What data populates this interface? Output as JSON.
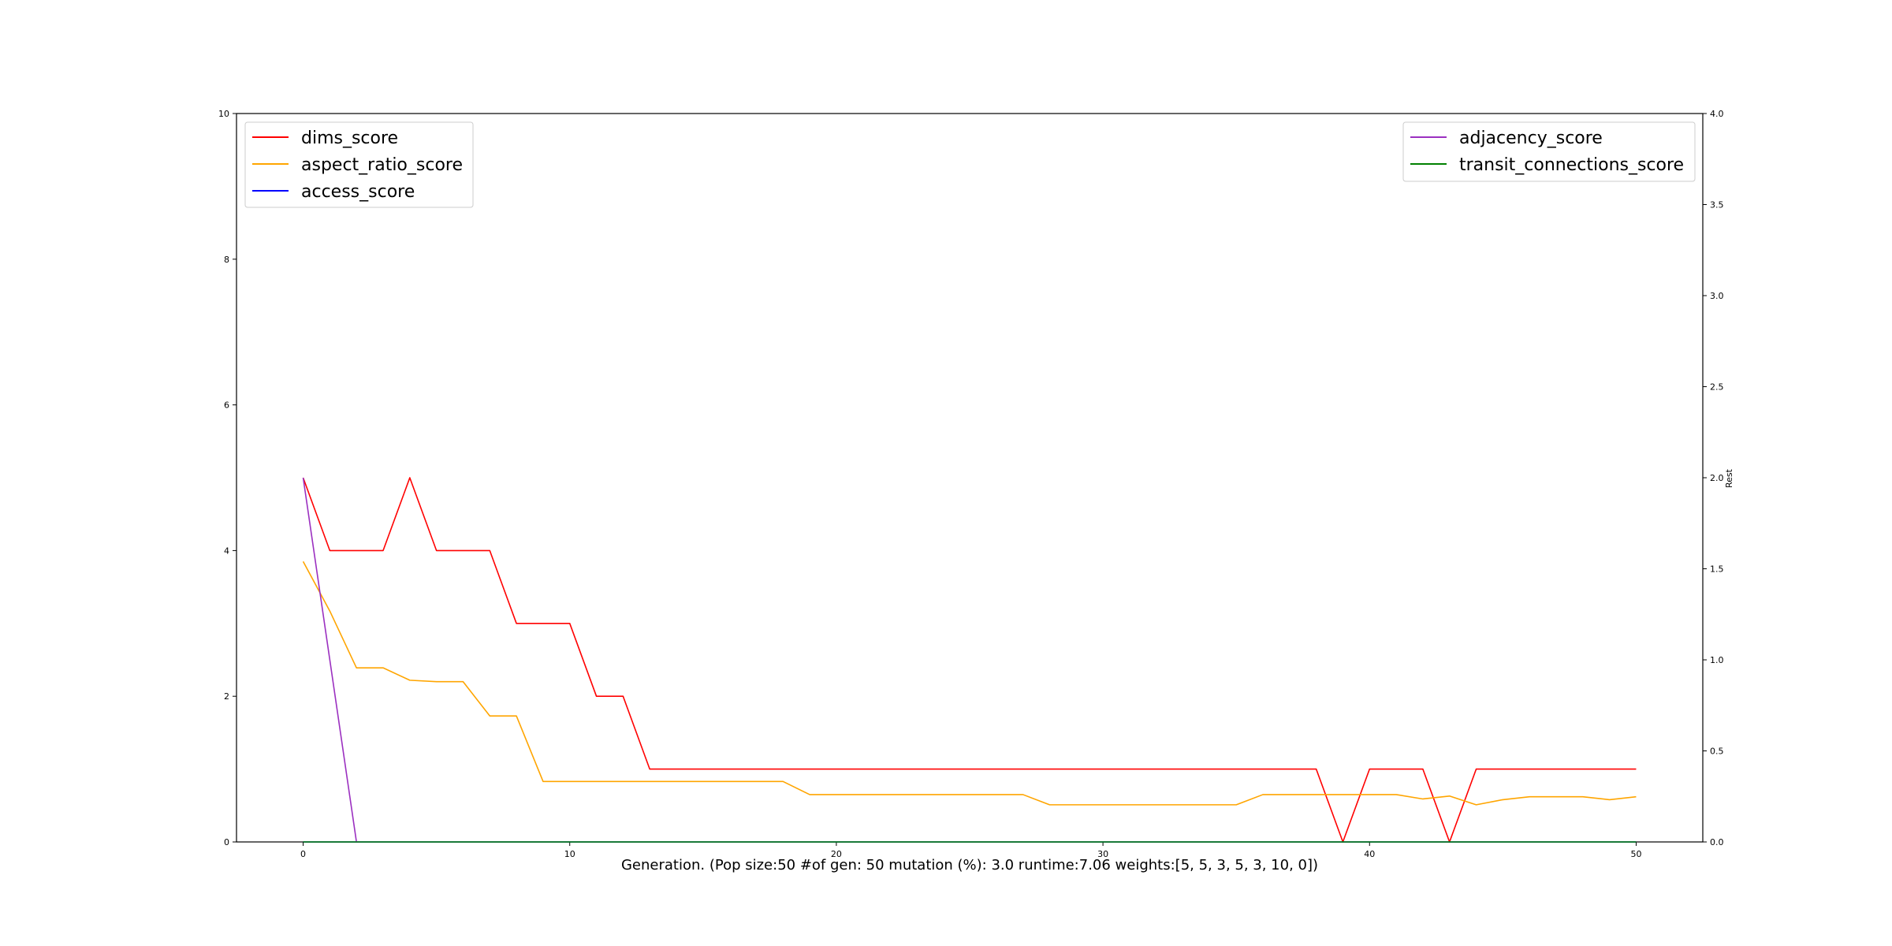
{
  "chart_data": {
    "type": "line",
    "xlabel": "Generation. (Pop size:50 #of gen: 50 mutation (%): 3.0 runtime:7.06 weights:[5, 5, 3, 5, 3, 10, 0])",
    "ylabel_left": "",
    "ylabel_right": "Rest",
    "xlim": [
      -2.5,
      52.5
    ],
    "ylim_left": [
      0,
      10
    ],
    "ylim_right": [
      0,
      4
    ],
    "x_ticks": [
      0,
      10,
      20,
      30,
      40,
      50
    ],
    "y_left_ticks": [
      0,
      2,
      4,
      6,
      8,
      10
    ],
    "y_right_ticks": [
      "0.0",
      "0.5",
      "1.0",
      "1.5",
      "2.0",
      "2.5",
      "3.0",
      "3.5",
      "4.0"
    ],
    "grid": false,
    "legend_left_placement": "top-left",
    "legend_right_placement": "top-right",
    "series": [
      {
        "name": "dims_score",
        "axis": "left",
        "color": "#ff0000",
        "x": [
          0,
          1,
          2,
          3,
          4,
          5,
          6,
          7,
          8,
          9,
          10,
          11,
          12,
          13,
          14,
          15,
          16,
          17,
          18,
          19,
          20,
          21,
          22,
          23,
          24,
          25,
          26,
          27,
          28,
          29,
          30,
          31,
          32,
          33,
          34,
          35,
          36,
          37,
          38,
          39,
          40,
          41,
          42,
          43,
          44,
          45,
          46,
          47,
          48,
          49,
          50
        ],
        "y": [
          5,
          4,
          4,
          4,
          5,
          4,
          4,
          4,
          3,
          3,
          3,
          2,
          2,
          1,
          1,
          1,
          1,
          1,
          1,
          1,
          1,
          1,
          1,
          1,
          1,
          1,
          1,
          1,
          1,
          1,
          1,
          1,
          1,
          1,
          1,
          1,
          1,
          1,
          1,
          0,
          1,
          1,
          1,
          0,
          1,
          1,
          1,
          1,
          1,
          1,
          1
        ]
      },
      {
        "name": "aspect_ratio_score",
        "axis": "left",
        "color": "#ffa500",
        "x": [
          0,
          1,
          2,
          3,
          4,
          5,
          6,
          7,
          8,
          9,
          10,
          11,
          12,
          13,
          14,
          15,
          16,
          17,
          18,
          19,
          20,
          21,
          22,
          23,
          24,
          25,
          26,
          27,
          28,
          29,
          30,
          31,
          32,
          33,
          34,
          35,
          36,
          37,
          38,
          39,
          40,
          41,
          42,
          43,
          44,
          45,
          46,
          47,
          48,
          49,
          50
        ],
        "y": [
          3.85,
          3.17,
          2.39,
          2.39,
          2.22,
          2.2,
          2.2,
          1.73,
          1.73,
          0.83,
          0.83,
          0.83,
          0.83,
          0.83,
          0.83,
          0.83,
          0.83,
          0.83,
          0.83,
          0.65,
          0.65,
          0.65,
          0.65,
          0.65,
          0.65,
          0.65,
          0.65,
          0.65,
          0.51,
          0.51,
          0.51,
          0.51,
          0.51,
          0.51,
          0.51,
          0.51,
          0.65,
          0.65,
          0.65,
          0.65,
          0.65,
          0.65,
          0.59,
          0.63,
          0.51,
          0.58,
          0.62,
          0.62,
          0.62,
          0.58,
          0.62
        ]
      },
      {
        "name": "access_score",
        "axis": "left",
        "color": "#0000ff",
        "x": [
          0,
          50
        ],
        "y": [
          0,
          0
        ]
      },
      {
        "name": "adjacency_score",
        "axis": "right",
        "color": "#9b30c0",
        "x": [
          0,
          1,
          2
        ],
        "y": [
          2.0,
          1.0,
          0.0
        ]
      },
      {
        "name": "transit_connections_score",
        "axis": "right",
        "color": "#008000",
        "x": [
          0,
          50
        ],
        "y": [
          0,
          0
        ]
      }
    ]
  }
}
